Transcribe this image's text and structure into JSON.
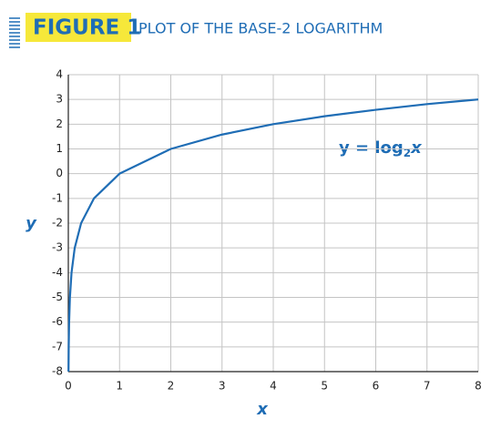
{
  "chart_data": {
    "type": "line",
    "figure_label": "FIGURE 1",
    "title": "PLOT OF THE BASE-2 LOGARITHM",
    "x_label": "x",
    "y_label": "y",
    "annotation": [
      "y = log",
      "2",
      "x"
    ],
    "series": [
      {
        "color": "#1f6db5",
        "x": [
          0.0039,
          0.0078,
          0.0156,
          0.0313,
          0.0625,
          0.125,
          0.25,
          0.5,
          1,
          2,
          3,
          4,
          5,
          6,
          7,
          8
        ],
        "values": [
          -8,
          -7,
          -6,
          -5,
          -4,
          -3,
          -2,
          -1,
          0,
          1,
          1.58,
          2,
          2.32,
          2.58,
          2.81,
          3
        ]
      }
    ],
    "xlim": [
      0,
      8
    ],
    "xticks": [
      0,
      1,
      2,
      3,
      4,
      5,
      6,
      7,
      8
    ],
    "ylim": [
      -8,
      4
    ],
    "yticks": [
      -8,
      -7,
      -6,
      -5,
      -4,
      -3,
      -2,
      -1,
      0,
      1,
      2,
      3,
      4
    ],
    "grid": true
  }
}
